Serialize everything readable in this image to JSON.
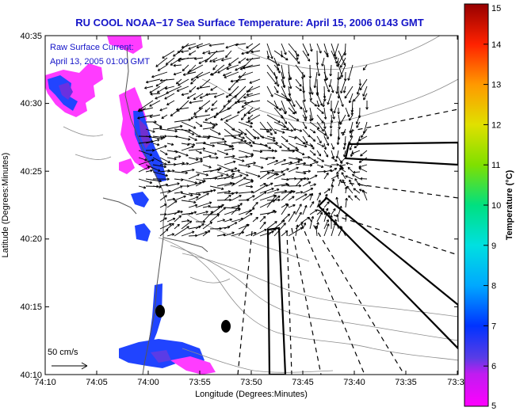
{
  "title": "RU COOL  NOAA−17  Sea Surface Temperature:  April 15, 2006 0143 GMT",
  "current_label_line1": "Raw Surface Current:",
  "current_label_line2": "April 13, 2005 01:00 GMT",
  "scale_label": "50 cm/s",
  "x_axis": {
    "label": "Longitude (Degrees:Minutes)",
    "ticks": [
      "74:10",
      "74:05",
      "74:00",
      "73:55",
      "73:50",
      "73:45",
      "73:40",
      "73:35",
      "73:3"
    ]
  },
  "y_axis": {
    "label": "Latitude (Degrees:Minutes)",
    "ticks": [
      "40:35",
      "40:30",
      "40:25",
      "40:20",
      "40:15",
      "40:10"
    ]
  },
  "colorbar": {
    "label": "Temperature (°C)",
    "ticks": [
      "15",
      "14",
      "13",
      "12",
      "11",
      "10",
      "9",
      "8",
      "7",
      "6",
      "5"
    ],
    "min": 5,
    "max": 15,
    "colors": [
      "#ff00ff",
      "#5a3ce6",
      "#0033ff",
      "#00a8ff",
      "#00e0e0",
      "#00e080",
      "#7fe000",
      "#e0e000",
      "#ff9900",
      "#ff2200",
      "#960000"
    ]
  },
  "map": {
    "lon_range": [
      "74:10",
      "73:30"
    ],
    "lat_range": [
      "40:10",
      "40:35"
    ],
    "land_color": "#ffffff",
    "contour_color": "#8c8c8c",
    "vector_color": "#000000"
  }
}
